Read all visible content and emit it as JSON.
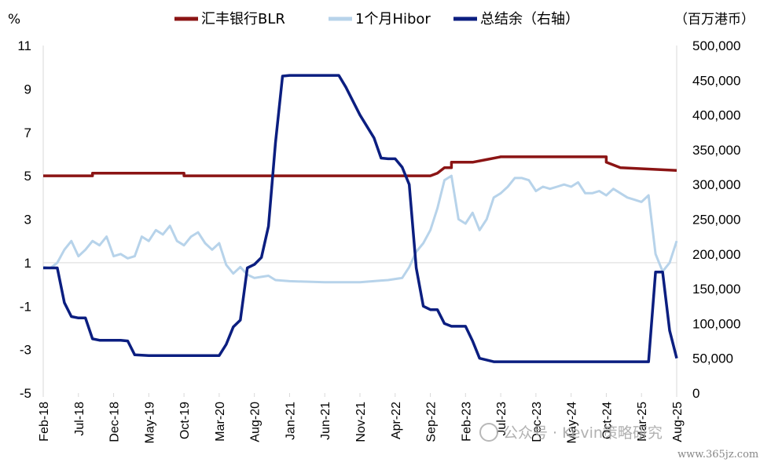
{
  "chart_data": {
    "type": "line",
    "left_unit": "%",
    "right_unit": "（百万港币）",
    "left_axis": {
      "min": -5,
      "max": 11,
      "ticks": [
        11,
        9,
        7,
        5,
        3,
        1,
        -1,
        -3,
        -5
      ]
    },
    "right_axis": {
      "min": 0,
      "max": 500000,
      "ticks": [
        "500,000",
        "450,000",
        "400,000",
        "350,000",
        "300,000",
        "250,000",
        "200,000",
        "150,000",
        "100,000",
        "50,000",
        "0"
      ]
    },
    "x_ticks": [
      "Feb-18",
      "Jul-18",
      "Dec-18",
      "May-19",
      "Oct-19",
      "Mar-20",
      "Aug-20",
      "Jan-21",
      "Jun-21",
      "Nov-21",
      "Apr-22",
      "Sep-22",
      "Feb-23",
      "Jul-23",
      "Dec-23",
      "May-24",
      "Oct-24",
      "Mar-25",
      "Aug-25"
    ],
    "x_range": [
      "2018-02",
      "2025-08"
    ],
    "negative_tick_color": "#e8141c",
    "series": [
      {
        "name": "汇丰银行BLR",
        "axis": "left",
        "color": "#8b1414",
        "points": [
          [
            "2018-02",
            5.0
          ],
          [
            "2018-09",
            5.0
          ],
          [
            "2018-09",
            5.125
          ],
          [
            "2019-10",
            5.125
          ],
          [
            "2019-10",
            5.0
          ],
          [
            "2022-09",
            5.0
          ],
          [
            "2022-10",
            5.125
          ],
          [
            "2022-11",
            5.375
          ],
          [
            "2022-12",
            5.375
          ],
          [
            "2022-12",
            5.625
          ],
          [
            "2023-03",
            5.625
          ],
          [
            "2023-03",
            5.625
          ],
          [
            "2023-05",
            5.75
          ],
          [
            "2023-07",
            5.875
          ],
          [
            "2024-10",
            5.875
          ],
          [
            "2024-10",
            5.625
          ],
          [
            "2024-12",
            5.375
          ],
          [
            "2025-08",
            5.25
          ]
        ]
      },
      {
        "name": "1个月Hibor",
        "axis": "left",
        "color": "#b7d3ea",
        "points": [
          [
            "2018-02",
            0.8
          ],
          [
            "2018-03",
            0.75
          ],
          [
            "2018-04",
            1.0
          ],
          [
            "2018-05",
            1.6
          ],
          [
            "2018-06",
            2.0
          ],
          [
            "2018-07",
            1.3
          ],
          [
            "2018-08",
            1.6
          ],
          [
            "2018-09",
            2.0
          ],
          [
            "2018-10",
            1.8
          ],
          [
            "2018-11",
            2.2
          ],
          [
            "2018-12",
            1.3
          ],
          [
            "2019-01",
            1.4
          ],
          [
            "2019-02",
            1.2
          ],
          [
            "2019-03",
            1.3
          ],
          [
            "2019-04",
            2.2
          ],
          [
            "2019-05",
            2.0
          ],
          [
            "2019-06",
            2.5
          ],
          [
            "2019-07",
            2.3
          ],
          [
            "2019-08",
            2.7
          ],
          [
            "2019-09",
            2.0
          ],
          [
            "2019-10",
            1.8
          ],
          [
            "2019-11",
            2.2
          ],
          [
            "2019-12",
            2.4
          ],
          [
            "2020-01",
            1.9
          ],
          [
            "2020-02",
            1.6
          ],
          [
            "2020-03",
            1.9
          ],
          [
            "2020-04",
            0.9
          ],
          [
            "2020-05",
            0.5
          ],
          [
            "2020-06",
            0.8
          ],
          [
            "2020-07",
            0.45
          ],
          [
            "2020-08",
            0.3
          ],
          [
            "2020-09",
            0.35
          ],
          [
            "2020-10",
            0.4
          ],
          [
            "2020-11",
            0.2
          ],
          [
            "2021-01",
            0.15
          ],
          [
            "2021-06",
            0.1
          ],
          [
            "2021-11",
            0.1
          ],
          [
            "2022-02",
            0.18
          ],
          [
            "2022-03",
            0.2
          ],
          [
            "2022-04",
            0.25
          ],
          [
            "2022-05",
            0.3
          ],
          [
            "2022-06",
            0.8
          ],
          [
            "2022-07",
            1.5
          ],
          [
            "2022-08",
            1.9
          ],
          [
            "2022-09",
            2.5
          ],
          [
            "2022-10",
            3.5
          ],
          [
            "2022-11",
            4.8
          ],
          [
            "2022-12",
            5.0
          ],
          [
            "2023-01",
            3.0
          ],
          [
            "2023-02",
            2.8
          ],
          [
            "2023-03",
            3.3
          ],
          [
            "2023-04",
            2.5
          ],
          [
            "2023-05",
            3.0
          ],
          [
            "2023-06",
            4.0
          ],
          [
            "2023-07",
            4.2
          ],
          [
            "2023-08",
            4.5
          ],
          [
            "2023-09",
            4.9
          ],
          [
            "2023-10",
            4.9
          ],
          [
            "2023-11",
            4.8
          ],
          [
            "2023-12",
            4.3
          ],
          [
            "2024-01",
            4.5
          ],
          [
            "2024-02",
            4.4
          ],
          [
            "2024-03",
            4.5
          ],
          [
            "2024-04",
            4.6
          ],
          [
            "2024-05",
            4.5
          ],
          [
            "2024-06",
            4.7
          ],
          [
            "2024-07",
            4.2
          ],
          [
            "2024-08",
            4.2
          ],
          [
            "2024-09",
            4.3
          ],
          [
            "2024-10",
            4.1
          ],
          [
            "2024-11",
            4.4
          ],
          [
            "2024-12",
            4.2
          ],
          [
            "2025-01",
            4.0
          ],
          [
            "2025-02",
            3.9
          ],
          [
            "2025-03",
            3.8
          ],
          [
            "2025-04",
            4.1
          ],
          [
            "2025-05",
            1.4
          ],
          [
            "2025-06",
            0.6
          ],
          [
            "2025-07",
            1.0
          ],
          [
            "2025-08",
            2.0
          ]
        ]
      },
      {
        "name": "总结余（右轴）",
        "axis": "right",
        "color": "#0b1e80",
        "points": [
          [
            "2018-02",
            180000
          ],
          [
            "2018-04",
            180000
          ],
          [
            "2018-05",
            130000
          ],
          [
            "2018-06",
            110000
          ],
          [
            "2018-07",
            108000
          ],
          [
            "2018-08",
            108000
          ],
          [
            "2018-09",
            78000
          ],
          [
            "2018-10",
            76000
          ],
          [
            "2018-12",
            76000
          ],
          [
            "2019-01",
            76000
          ],
          [
            "2019-02",
            75000
          ],
          [
            "2019-03",
            55000
          ],
          [
            "2019-05",
            54000
          ],
          [
            "2019-10",
            54000
          ],
          [
            "2020-03",
            54000
          ],
          [
            "2020-04",
            70000
          ],
          [
            "2020-05",
            95000
          ],
          [
            "2020-06",
            105000
          ],
          [
            "2020-07",
            180000
          ],
          [
            "2020-08",
            185000
          ],
          [
            "2020-09",
            195000
          ],
          [
            "2020-10",
            240000
          ],
          [
            "2020-11",
            360000
          ],
          [
            "2020-12",
            456000
          ],
          [
            "2021-01",
            457000
          ],
          [
            "2021-06",
            457000
          ],
          [
            "2021-08",
            457000
          ],
          [
            "2021-09",
            440000
          ],
          [
            "2021-11",
            400000
          ],
          [
            "2022-01",
            367000
          ],
          [
            "2022-02",
            338000
          ],
          [
            "2022-03",
            337000
          ],
          [
            "2022-04",
            337000
          ],
          [
            "2022-05",
            325000
          ],
          [
            "2022-06",
            300000
          ],
          [
            "2022-07",
            180000
          ],
          [
            "2022-08",
            125000
          ],
          [
            "2022-09",
            120000
          ],
          [
            "2022-10",
            120000
          ],
          [
            "2022-11",
            100000
          ],
          [
            "2022-12",
            96000
          ],
          [
            "2023-02",
            96000
          ],
          [
            "2023-03",
            75000
          ],
          [
            "2023-04",
            50000
          ],
          [
            "2023-06",
            45000
          ],
          [
            "2024-01",
            45000
          ],
          [
            "2024-10",
            45000
          ],
          [
            "2025-04",
            45000
          ],
          [
            "2025-05",
            174000
          ],
          [
            "2025-06",
            174000
          ],
          [
            "2025-07",
            90000
          ],
          [
            "2025-08",
            50000
          ]
        ]
      }
    ]
  },
  "watermark": {
    "text": "公众号 · Kevin策略研究",
    "site": "www.365jz.com"
  }
}
